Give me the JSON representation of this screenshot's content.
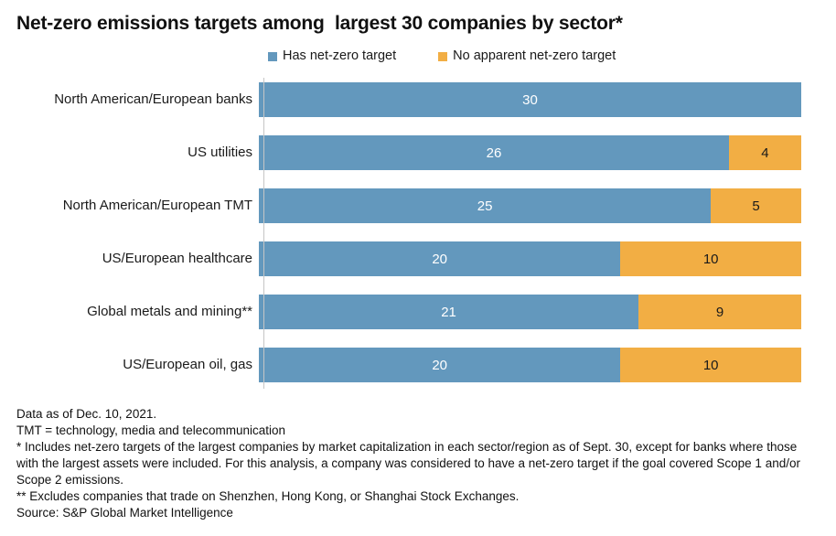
{
  "title": "Net-zero emissions targets among  largest 30 companies by sector*",
  "chart_data": {
    "type": "bar",
    "orientation": "horizontal",
    "stacked": true,
    "title": "Net-zero emissions targets among largest 30 companies by sector*",
    "categories": [
      "North American/European banks",
      "US utilities",
      "North American/European TMT",
      "US/European healthcare",
      "Global metals and mining**",
      "US/European oil, gas"
    ],
    "series": [
      {
        "key": "has-net-zero-target",
        "name": "Has net-zero target",
        "color": "#6398BD",
        "label_color": "#ffffff",
        "values": [
          30,
          26,
          25,
          20,
          21,
          20
        ]
      },
      {
        "key": "no-apparent-net-zero-target",
        "name": "No apparent net-zero target",
        "color": "#F2AE44",
        "label_color": "#1a1a1a",
        "values": [
          0,
          4,
          5,
          10,
          9,
          10
        ]
      }
    ],
    "xlim": [
      0,
      30
    ],
    "legend_position": "top",
    "value_labels": "inside-center",
    "grid": false,
    "axis_line_color": "#c6c6c6"
  },
  "footnotes": [
    "Data as of Dec. 10, 2021.",
    "TMT = technology, media and telecommunication",
    "* Includes net-zero targets of the largest companies by market capitalization in each sector/region as of Sept. 30, except for banks where those with the largest assets were included. For this analysis, a company was considered to have a net-zero target if the goal covered Scope 1 and/or Scope 2 emissions.",
    "** Excludes companies that trade on Shenzhen, Hong Kong, or Shanghai Stock Exchanges.",
    "Source: S&P Global Market Intelligence"
  ]
}
